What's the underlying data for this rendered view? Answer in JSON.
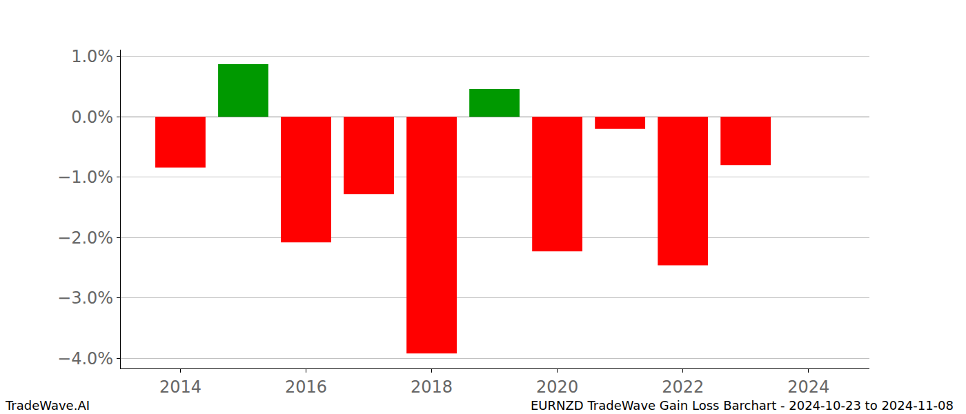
{
  "chart_data": {
    "type": "bar",
    "x": [
      2014,
      2015,
      2016,
      2017,
      2018,
      2019,
      2020,
      2021,
      2022,
      2023
    ],
    "values": [
      -0.84,
      0.87,
      -2.08,
      -1.28,
      -3.92,
      0.46,
      -2.23,
      -0.2,
      -2.46,
      -0.8
    ],
    "colors": [
      "#ff0000",
      "#009900",
      "#ff0000",
      "#ff0000",
      "#ff0000",
      "#009900",
      "#ff0000",
      "#ff0000",
      "#ff0000",
      "#ff0000"
    ],
    "xlim": [
      2013.05,
      2024.97
    ],
    "xticks": [
      2014,
      2016,
      2018,
      2020,
      2022,
      2024
    ],
    "ylim": [
      -4.17,
      1.11
    ],
    "yticks": [
      {
        "value": -4,
        "label": "−4.0%"
      },
      {
        "value": -3,
        "label": "−3.0%"
      },
      {
        "value": -2,
        "label": "−2.0%"
      },
      {
        "value": -1,
        "label": "−1.0%"
      },
      {
        "value": 0,
        "label": "0.0%"
      },
      {
        "value": 1,
        "label": "1.0%"
      }
    ],
    "grid": true,
    "annotations": [
      "TradeWave.AI",
      "EURNZD TradeWave Gain Loss Barchart - 2024-10-23 to 2024-11-08"
    ]
  }
}
